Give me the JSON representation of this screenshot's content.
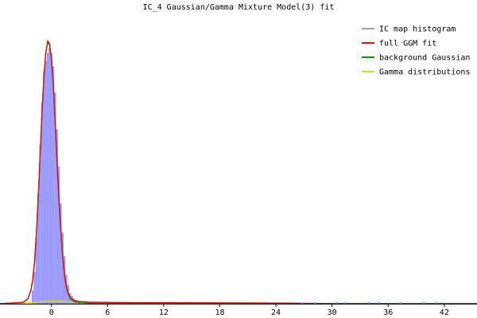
{
  "chart_data": {
    "type": "area",
    "title": "IC_4 Gaussian/Gamma Mixture Model(3) fit",
    "xlabel": "",
    "ylabel": "",
    "xlim": [
      -5.5,
      45.5
    ],
    "ylim": [
      0,
      1.0
    ],
    "x_ticks": [
      0,
      6,
      12,
      18,
      24,
      30,
      36,
      42
    ],
    "x_tick_labels": [
      "0",
      "6",
      "12",
      "18",
      "24",
      "30",
      "36",
      "42"
    ],
    "grid": false,
    "legend_position": "top-right",
    "series": [
      {
        "name": "IC map histogram",
        "style": "histogram",
        "color": "#9999ff",
        "x": [
          -2.0,
          -1.8,
          -1.6,
          -1.4,
          -1.2,
          -1.0,
          -0.8,
          -0.6,
          -0.4,
          -0.2,
          0.0,
          0.2,
          0.4,
          0.6,
          0.8,
          1.0,
          1.2,
          1.4,
          1.6,
          1.8,
          2.0,
          2.2,
          2.4,
          2.6,
          2.8,
          3.0
        ],
        "values": [
          0.05,
          0.12,
          0.25,
          0.42,
          0.6,
          0.76,
          0.88,
          0.92,
          0.95,
          0.97,
          0.95,
          0.9,
          0.8,
          0.66,
          0.52,
          0.38,
          0.27,
          0.18,
          0.11,
          0.07,
          0.04,
          0.03,
          0.02,
          0.015,
          0.01,
          0.008
        ]
      },
      {
        "name": "full GGM fit",
        "style": "line",
        "color": "#e01010",
        "x": [
          -5.5,
          -3.0,
          -2.5,
          -2.2,
          -2.0,
          -1.8,
          -1.6,
          -1.4,
          -1.2,
          -1.0,
          -0.8,
          -0.6,
          -0.4,
          -0.2,
          0.0,
          0.2,
          0.4,
          0.6,
          0.8,
          1.0,
          1.2,
          1.4,
          1.6,
          1.8,
          2.0,
          2.4,
          3.0,
          4.0,
          6.0,
          10.0,
          20.0,
          26.0,
          30.0,
          45.5
        ],
        "values": [
          0.0,
          0.005,
          0.02,
          0.05,
          0.09,
          0.16,
          0.27,
          0.41,
          0.57,
          0.73,
          0.86,
          0.95,
          0.995,
          0.985,
          0.93,
          0.83,
          0.69,
          0.54,
          0.4,
          0.28,
          0.18,
          0.11,
          0.065,
          0.04,
          0.025,
          0.012,
          0.008,
          0.006,
          0.005,
          0.004,
          0.003,
          0.002,
          0.0,
          0.0
        ]
      },
      {
        "name": "background Gaussian",
        "style": "line",
        "color": "#009900",
        "x": [
          -5.5,
          -3.0,
          -2.5,
          -2.2,
          -2.0,
          -1.8,
          -1.6,
          -1.4,
          -1.2,
          -1.0,
          -0.8,
          -0.6,
          -0.4,
          -0.2,
          0.0,
          0.2,
          0.4,
          0.6,
          0.8,
          1.0,
          1.2,
          1.4,
          1.6,
          1.8,
          2.0,
          2.4,
          3.0,
          4.0,
          6.0,
          45.5
        ],
        "values": [
          0.0,
          0.005,
          0.02,
          0.05,
          0.09,
          0.16,
          0.27,
          0.41,
          0.57,
          0.73,
          0.86,
          0.95,
          0.99,
          0.98,
          0.925,
          0.825,
          0.685,
          0.535,
          0.395,
          0.275,
          0.175,
          0.105,
          0.06,
          0.035,
          0.02,
          0.008,
          0.004,
          0.002,
          0.001,
          0.0
        ]
      },
      {
        "name": "Gamma distributions",
        "style": "line",
        "color": "#e8d800",
        "x": [
          -5.5,
          -2.0,
          -1.0,
          0.0,
          1.0,
          2.0,
          3.0,
          4.0,
          6.0,
          10.0,
          20.0,
          26.0,
          30.0,
          45.5
        ],
        "values": [
          0.0,
          0.004,
          0.008,
          0.01,
          0.009,
          0.007,
          0.006,
          0.005,
          0.004,
          0.003,
          0.002,
          0.001,
          0.0,
          0.0
        ]
      }
    ],
    "outlier_marks_x": [
      26.8,
      28.2,
      30.5,
      31.4,
      33.9,
      35.0,
      37.3,
      39.8,
      41.2
    ]
  }
}
